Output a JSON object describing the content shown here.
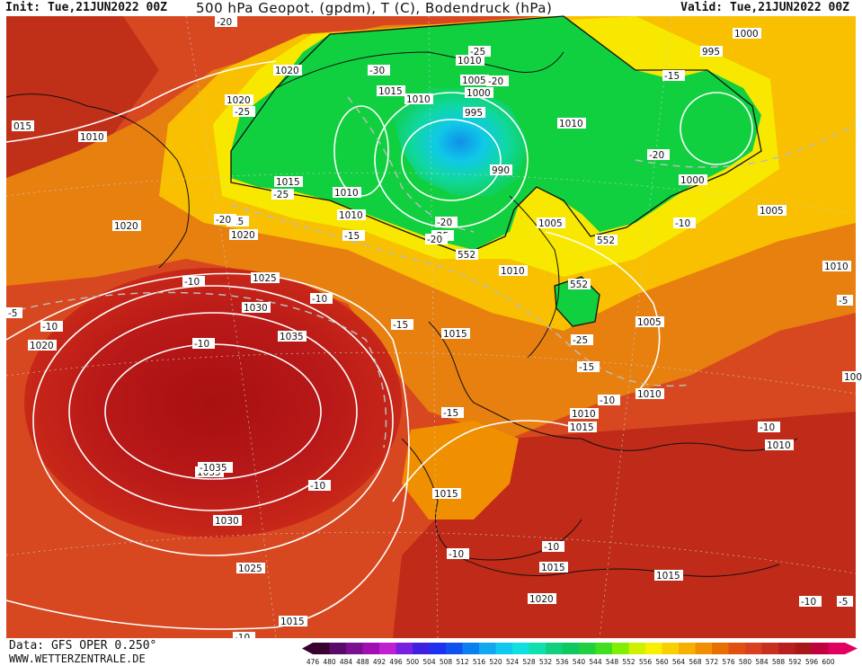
{
  "header": {
    "init": "Init: Tue,21JUN2022 00Z",
    "title": "500 hPa Geopot. (gpdm), T (C), Bodendruck (hPa)",
    "valid": "Valid: Tue,21JUN2022 00Z"
  },
  "footer": {
    "data_source": "Data: GFS OPER 0.250°",
    "website": "WWW.WETTERZENTRALE.DE"
  },
  "legend": {
    "values": [
      "476",
      "480",
      "484",
      "488",
      "492",
      "496",
      "500",
      "504",
      "508",
      "512",
      "516",
      "520",
      "524",
      "528",
      "532",
      "536",
      "540",
      "544",
      "548",
      "552",
      "556",
      "560",
      "564",
      "568",
      "572",
      "576",
      "580",
      "584",
      "588",
      "592",
      "596",
      "600"
    ],
    "colors": [
      "#3a0030",
      "#5a0a6a",
      "#7a1090",
      "#a010b0",
      "#c020d0",
      "#7a20e0",
      "#4020e0",
      "#2030f0",
      "#1050f0",
      "#0a80f0",
      "#10a8f0",
      "#10c8f0",
      "#10e0e0",
      "#10e0b0",
      "#10d080",
      "#10c860",
      "#20d040",
      "#40e020",
      "#80f000",
      "#d0f000",
      "#f8f000",
      "#f8d000",
      "#f8b000",
      "#f09000",
      "#e87000",
      "#e05010",
      "#d84020",
      "#c83020",
      "#b82020",
      "#a81818",
      "#c00040",
      "#e00060"
    ]
  },
  "isobar_labels": [
    {
      "text": "1000"
    },
    {
      "text": "995"
    },
    {
      "text": "1010"
    },
    {
      "text": "1005"
    },
    {
      "text": "1000"
    },
    {
      "text": "995"
    },
    {
      "text": "990"
    },
    {
      "text": "1010"
    },
    {
      "text": "1015"
    },
    {
      "text": "1010"
    },
    {
      "text": "1020"
    },
    {
      "text": "1020"
    },
    {
      "text": "1015"
    },
    {
      "text": "1010"
    },
    {
      "text": "1010"
    },
    {
      "text": "1010"
    },
    {
      "text": "1020"
    },
    {
      "text": "1020"
    },
    {
      "text": "015"
    },
    {
      "text": "1010"
    },
    {
      "text": "1000"
    },
    {
      "text": "1005"
    },
    {
      "text": "1005"
    },
    {
      "text": "1010"
    },
    {
      "text": "1005"
    },
    {
      "text": "1010"
    },
    {
      "text": "1025"
    },
    {
      "text": "1030"
    },
    {
      "text": "1035"
    },
    {
      "text": "1020"
    },
    {
      "text": "1015"
    },
    {
      "text": "1010"
    },
    {
      "text": "1015"
    },
    {
      "text": "1015"
    },
    {
      "text": "1010"
    },
    {
      "text": "1035"
    },
    {
      "text": "1030"
    },
    {
      "text": "1015"
    },
    {
      "text": "1025"
    },
    {
      "text": "1015"
    },
    {
      "text": "1015"
    },
    {
      "text": "1020"
    },
    {
      "text": "1010"
    },
    {
      "text": "100"
    }
  ],
  "temp_labels": [
    {
      "text": "-20"
    },
    {
      "text": "-30"
    },
    {
      "text": "-25"
    },
    {
      "text": "-20"
    },
    {
      "text": "-25"
    },
    {
      "text": "-15"
    },
    {
      "text": "-20"
    },
    {
      "text": "-25"
    },
    {
      "text": "-20"
    },
    {
      "text": "-15"
    },
    {
      "text": "-20"
    },
    {
      "text": "-25"
    },
    {
      "text": "-20"
    },
    {
      "text": "-15"
    },
    {
      "text": "-10"
    },
    {
      "text": "-10"
    },
    {
      "text": "-10"
    },
    {
      "text": "-15"
    },
    {
      "text": "-10"
    },
    {
      "text": "-25"
    },
    {
      "text": "-15"
    },
    {
      "text": "-10"
    },
    {
      "text": "-15"
    },
    {
      "text": "-10"
    },
    {
      "text": "-10"
    },
    {
      "text": "-5"
    },
    {
      "text": "-10"
    },
    {
      "text": "-10"
    },
    {
      "text": "-10"
    },
    {
      "text": "-10"
    },
    {
      "text": "-5"
    },
    {
      "text": "-5"
    },
    {
      "text": "-10"
    },
    {
      "text": "-1035"
    }
  ],
  "geopot_labels": [
    {
      "text": "552"
    },
    {
      "text": "552"
    },
    {
      "text": "552"
    }
  ]
}
